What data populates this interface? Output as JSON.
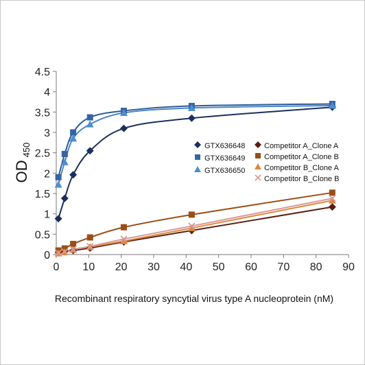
{
  "chart_data": {
    "type": "scatter",
    "xlabel": "Recombinant respiratory syncytial virus type A nucleoprotein (nM)",
    "ylabel": "OD",
    "ylabel_subscript": "450",
    "xlim": [
      0,
      90
    ],
    "ylim": [
      0,
      4.5
    ],
    "xticks": [
      "0",
      "10",
      "20",
      "30",
      "40",
      "50",
      "60",
      "70",
      "80",
      "90"
    ],
    "yticks": [
      "0",
      "0.5",
      "1",
      "1.5",
      "2",
      "2.5",
      "3",
      "3.5",
      "4",
      "4.5"
    ],
    "grid": false,
    "legend_position": "right",
    "series": [
      {
        "name": "GTX636648",
        "color": "#1b2f5e",
        "marker": "diamond",
        "curve": "#1b2f5e",
        "x": [
          0.66,
          2.6,
          5.2,
          10.4,
          20.8,
          41.7,
          85
        ],
        "y": [
          0.88,
          1.38,
          1.96,
          2.55,
          3.1,
          3.35,
          3.62
        ]
      },
      {
        "name": "GTX636649",
        "color": "#3565a3",
        "marker": "square",
        "curve": "#2c5a96",
        "x": [
          0.66,
          2.6,
          5.2,
          10.4,
          20.8,
          41.7,
          85
        ],
        "y": [
          1.9,
          2.47,
          3.0,
          3.37,
          3.53,
          3.65,
          3.7
        ]
      },
      {
        "name": "GTX636650",
        "color": "#4d8ed0",
        "marker": "triangle",
        "curve": "#4a86c8",
        "x": [
          0.66,
          2.6,
          5.2,
          10.4,
          20.8,
          41.7,
          85
        ],
        "y": [
          1.72,
          2.27,
          2.85,
          3.2,
          3.48,
          3.6,
          3.66
        ]
      },
      {
        "name": "Competitor A_Clone A",
        "color": "#5a1f12",
        "marker": "diamond",
        "curve": "#5a1f12",
        "x": [
          0.66,
          2.6,
          5.2,
          10.4,
          20.8,
          41.7,
          85
        ],
        "y": [
          0.05,
          0.08,
          0.1,
          0.16,
          0.31,
          0.59,
          1.17
        ]
      },
      {
        "name": "Competitor A_Clone B",
        "color": "#9c4d16",
        "marker": "square",
        "curve": "#9c4d16",
        "x": [
          0.66,
          2.6,
          5.2,
          10.4,
          20.8,
          41.7,
          85
        ],
        "y": [
          0.1,
          0.15,
          0.26,
          0.42,
          0.67,
          0.98,
          1.52
        ]
      },
      {
        "name": "Competitor B_Clone A",
        "color": "#e0883a",
        "marker": "triangle",
        "curve": "#e0883a",
        "x": [
          0.66,
          2.6,
          5.2,
          10.4,
          20.8,
          41.7,
          85
        ],
        "y": [
          0.03,
          0.06,
          0.12,
          0.19,
          0.33,
          0.65,
          1.33
        ]
      },
      {
        "name": "Competitor B_Clone B",
        "color": "#d69a9a",
        "marker": "x",
        "curve": "#d69a9a",
        "x": [
          0.66,
          2.6,
          5.2,
          10.4,
          20.8,
          41.7,
          85
        ],
        "y": [
          0.04,
          0.07,
          0.13,
          0.2,
          0.38,
          0.7,
          1.38
        ]
      }
    ]
  }
}
